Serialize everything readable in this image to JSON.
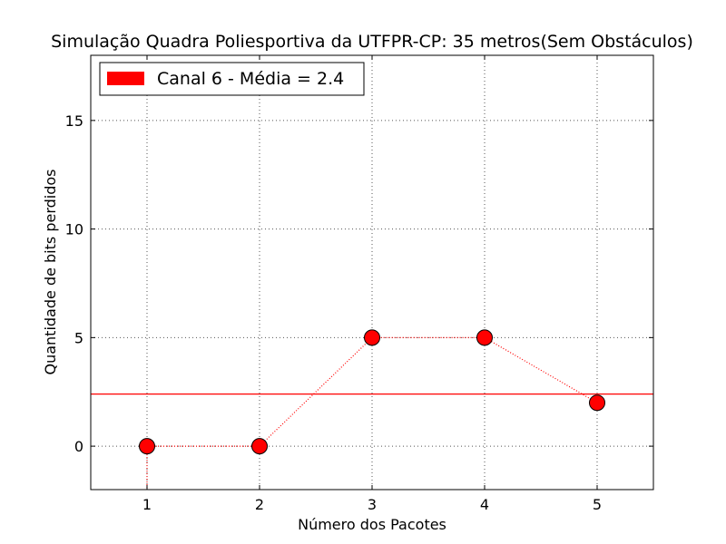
{
  "chart_data": {
    "type": "line",
    "title": "Simulação Quadra Poliesportiva da UTFPR-CP: 35 metros(Sem Obstáculos)",
    "xlabel": "Número dos Pacotes",
    "ylabel": "Quantidade de bits perdidos",
    "xlim": [
      0.5,
      5.5
    ],
    "ylim": [
      -2,
      18
    ],
    "xticks": [
      1,
      2,
      3,
      4,
      5
    ],
    "yticks": [
      0,
      5,
      10,
      15
    ],
    "grid": true,
    "legend_position": "top-left",
    "series": [
      {
        "name": "Canal 6 - Média = 2.4",
        "x": [
          1,
          2,
          3,
          4,
          5
        ],
        "y": [
          0,
          0,
          5,
          5,
          2
        ],
        "color": "#ff0000",
        "line_style": "dotted",
        "marker": "circle"
      }
    ],
    "reference_line": {
      "y": 2.4,
      "color": "#ff0000"
    },
    "extra_segment": {
      "x": [
        1,
        1
      ],
      "y": [
        0,
        -2
      ],
      "color": "#ff0000",
      "line_style": "dotted"
    }
  }
}
